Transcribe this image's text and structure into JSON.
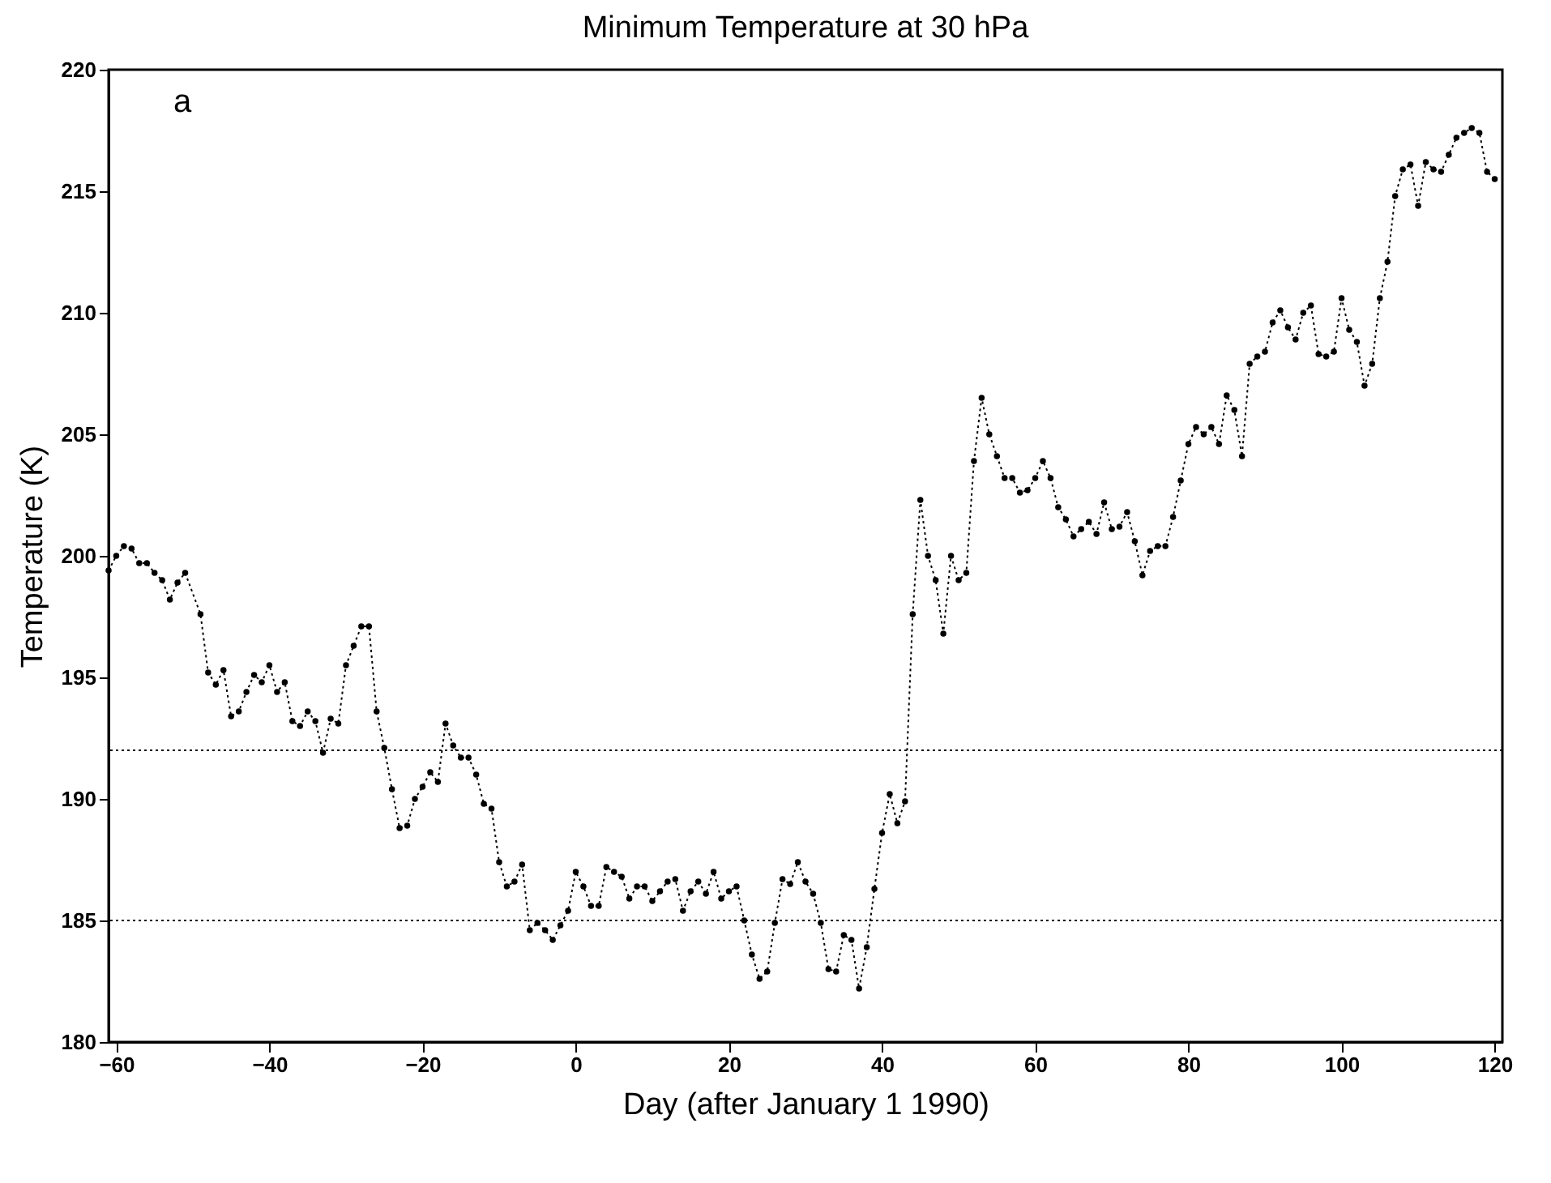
{
  "chart_data": {
    "type": "line",
    "title": "Minimum Temperature at 30 hPa",
    "xlabel": "Day (after January 1 1990)",
    "ylabel": "Temperature (K)",
    "annotations": [
      "a"
    ],
    "x": [
      -61,
      -60,
      -59,
      -58,
      -57,
      -56,
      -55,
      -54,
      -53,
      -52,
      -51,
      -49,
      -48,
      -47,
      -46,
      -45,
      -44,
      -43,
      -42,
      -41,
      -40,
      -39,
      -38,
      -37,
      -36,
      -35,
      -34,
      -33,
      -32,
      -31,
      -30,
      -29,
      -28,
      -27,
      -26,
      -25,
      -24,
      -23,
      -22,
      -21,
      -20,
      -19,
      -18,
      -17,
      -16,
      -15,
      -14,
      -13,
      -12,
      -11,
      -10,
      -9,
      -8,
      -7,
      -6,
      -5,
      -4,
      -3,
      -2,
      -1,
      0,
      1,
      2,
      3,
      4,
      5,
      6,
      7,
      8,
      9,
      10,
      11,
      12,
      13,
      14,
      15,
      16,
      17,
      18,
      19,
      20,
      21,
      22,
      23,
      24,
      25,
      26,
      27,
      28,
      29,
      30,
      31,
      32,
      33,
      34,
      35,
      36,
      37,
      38,
      39,
      40,
      41,
      42,
      43,
      44,
      45,
      46,
      47,
      48,
      49,
      50,
      51,
      52,
      53,
      54,
      55,
      56,
      57,
      58,
      59,
      60,
      61,
      62,
      63,
      64,
      65,
      66,
      67,
      68,
      69,
      70,
      71,
      72,
      73,
      74,
      75,
      76,
      77,
      78,
      79,
      80,
      81,
      82,
      83,
      84,
      85,
      86,
      87,
      88,
      89,
      90,
      91,
      92,
      93,
      94,
      95,
      96,
      97,
      98,
      99,
      100,
      101,
      102,
      103,
      104,
      105,
      106,
      107,
      108,
      109,
      110,
      111,
      112,
      113,
      114,
      115,
      116,
      117,
      118,
      119,
      120
    ],
    "series": [
      {
        "color": "#000000",
        "values": [
          199.4,
          200.0,
          200.4,
          200.3,
          199.7,
          199.7,
          199.3,
          199.0,
          198.2,
          198.9,
          199.3,
          197.6,
          195.2,
          194.7,
          195.3,
          193.4,
          193.6,
          194.4,
          195.1,
          194.8,
          195.5,
          194.4,
          194.8,
          193.2,
          193.0,
          193.6,
          193.2,
          191.9,
          193.3,
          193.1,
          195.5,
          196.3,
          197.1,
          197.1,
          193.6,
          192.1,
          190.4,
          188.8,
          188.9,
          190.0,
          190.5,
          191.1,
          190.7,
          193.1,
          192.2,
          191.7,
          191.7,
          191.0,
          189.8,
          189.6,
          187.4,
          186.4,
          186.6,
          187.3,
          184.6,
          184.9,
          184.6,
          184.2,
          184.8,
          185.4,
          187.0,
          186.4,
          185.6,
          185.6,
          187.2,
          187.0,
          186.8,
          185.9,
          186.4,
          186.4,
          185.8,
          186.2,
          186.6,
          186.7,
          185.4,
          186.2,
          186.6,
          186.1,
          187.0,
          185.9,
          186.2,
          186.4,
          185.0,
          183.6,
          182.6,
          182.9,
          184.9,
          186.7,
          186.5,
          187.4,
          186.6,
          186.1,
          184.9,
          183.0,
          182.9,
          184.4,
          184.2,
          182.2,
          183.9,
          186.3,
          188.6,
          190.2,
          189.0,
          189.9,
          197.6,
          202.3,
          200.0,
          199.0,
          196.8,
          200.0,
          199.0,
          199.3,
          203.9,
          206.5,
          205.0,
          204.1,
          203.2,
          203.2,
          202.6,
          202.7,
          203.2,
          203.9,
          203.2,
          202.0,
          201.5,
          200.8,
          201.1,
          201.4,
          200.9,
          202.2,
          201.1,
          201.2,
          201.8,
          200.6,
          199.2,
          200.2,
          200.4,
          200.4,
          201.6,
          203.1,
          204.6,
          205.3,
          205.0,
          205.3,
          204.6,
          206.6,
          206.0,
          204.1,
          207.9,
          208.2,
          208.4,
          209.6,
          210.1,
          209.4,
          208.9,
          210.0,
          210.3,
          208.3,
          208.2,
          208.4,
          210.6,
          209.3,
          208.8,
          207.0,
          207.9,
          210.6,
          212.1,
          214.8,
          215.9,
          216.1,
          214.4,
          216.2,
          215.9,
          215.8,
          216.5,
          217.2,
          217.4,
          217.6,
          217.4,
          215.8,
          215.5
        ]
      }
    ],
    "xlim": [
      -61,
      121
    ],
    "xticks": [
      -60,
      -40,
      -20,
      0,
      20,
      40,
      60,
      80,
      100,
      120
    ],
    "ylim": [
      180,
      220
    ],
    "yticks": [
      180,
      185,
      190,
      195,
      200,
      205,
      210,
      215,
      220
    ],
    "ref_lines": [
      {
        "axis": "y",
        "value": 192,
        "color": "#000000",
        "line_style": "dotted"
      },
      {
        "axis": "y",
        "value": 185,
        "color": "#000000",
        "line_style": "dotted"
      }
    ],
    "marker": "circle",
    "line_style": "dotted",
    "grid": false
  }
}
